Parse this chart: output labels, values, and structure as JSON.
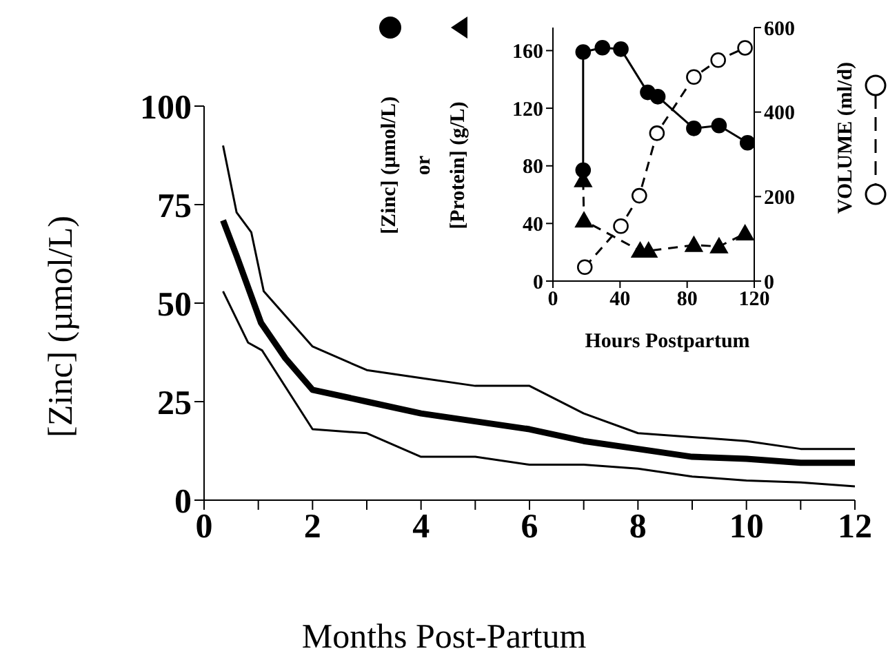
{
  "chart_data": [
    {
      "type": "line",
      "xlabel": "Months Post-Partum",
      "ylabel": "[Zinc] (µmol/L)",
      "xlim": [
        0,
        12
      ],
      "ylim": [
        0,
        100
      ],
      "xticks": [
        0,
        {
          "value": 1,
          "label": null
        },
        2,
        {
          "value": 3,
          "label": null
        },
        4,
        {
          "value": 5,
          "label": null
        },
        6,
        {
          "value": 7,
          "label": null
        },
        8,
        {
          "value": 9,
          "label": null
        },
        10,
        {
          "value": 11,
          "label": null
        },
        12
      ],
      "yticks": [
        0,
        25,
        50,
        75,
        100
      ],
      "grid": false,
      "marker": "none",
      "line_style": "solid",
      "series": [
        {
          "color": "#000000",
          "x": [
            0.35,
            0.6,
            1.05,
            1.5,
            2,
            3,
            4,
            5,
            6,
            7,
            8,
            9,
            10,
            11,
            12
          ],
          "values": [
            71,
            62,
            45,
            36,
            28,
            25,
            22,
            20,
            18,
            15,
            13,
            11,
            10.5,
            9.5,
            9.5
          ]
        },
        {
          "color": "#000000",
          "x": [
            0.35,
            0.6,
            0.87,
            1.1,
            2,
            3,
            4,
            5,
            6,
            7,
            8,
            9,
            10,
            11,
            12
          ],
          "values": [
            90,
            73,
            68,
            53,
            39,
            33,
            31,
            29,
            29,
            22,
            17,
            16,
            15,
            13,
            13
          ]
        },
        {
          "color": "#000000",
          "x": [
            0.35,
            0.81,
            1.07,
            2,
            3,
            4,
            5,
            6,
            7,
            8,
            9,
            10,
            11,
            12
          ],
          "values": [
            53,
            40,
            38,
            18,
            17,
            11,
            11,
            9,
            9,
            8,
            6,
            5,
            4.5,
            3.5
          ]
        }
      ]
    },
    {
      "type": "line",
      "xlabel": "Hours Postpartum",
      "ylabel": "[Zinc] (µmol/L)\nor\n[Protein] (g/L)",
      "y2label": "VOLUME (ml/d)",
      "xlim": [
        0,
        120
      ],
      "ylim": [
        0,
        176
      ],
      "y2lim": [
        0,
        600
      ],
      "xticks": [
        0,
        40,
        80,
        120
      ],
      "yticks": [
        0,
        40,
        80,
        120,
        160
      ],
      "y2ticks": [
        0,
        200,
        400,
        600
      ],
      "grid": false,
      "series": [
        {
          "color": "#000000",
          "marker": "circle",
          "line_style": "solid",
          "x": [
            18,
            18,
            29.5,
            40.5,
            56.5,
            62.5,
            84,
            99,
            116
          ],
          "values": [
            77,
            159,
            162,
            161,
            131,
            128,
            106,
            108,
            96
          ]
        },
        {
          "color": "#000000",
          "marker": "triangle",
          "line_style": "dashed",
          "x": [
            18,
            18.5,
            52,
            57,
            84,
            99,
            114.5
          ],
          "values": [
            70,
            42,
            21,
            21,
            25,
            24,
            33
          ]
        },
        {
          "color": "#000000",
          "marker": "circle",
          "line_style": "dashed",
          "axis": "y2",
          "x": [
            19,
            40.5,
            51.5,
            62,
            84,
            98.5,
            114.5
          ],
          "values": [
            33,
            130,
            202,
            350,
            483,
            523,
            552
          ]
        }
      ]
    }
  ]
}
